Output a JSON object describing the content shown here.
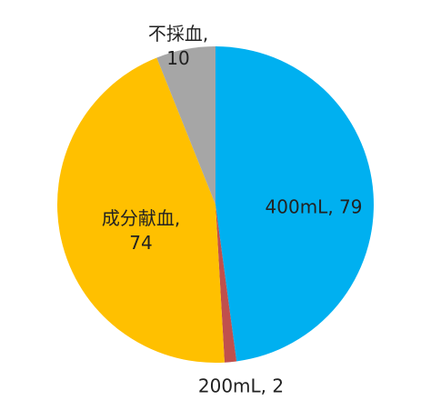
{
  "chart_data": {
    "type": "pie",
    "values": [
      79,
      2,
      74,
      10
    ],
    "value_labels": [
      "400mL, 79",
      "200mL, 2",
      "成分献血,\n74",
      "不採血,\n10"
    ],
    "colors": [
      "#00b0f0",
      "#c0504d",
      "#ffc000",
      "#a6a6a6"
    ]
  }
}
